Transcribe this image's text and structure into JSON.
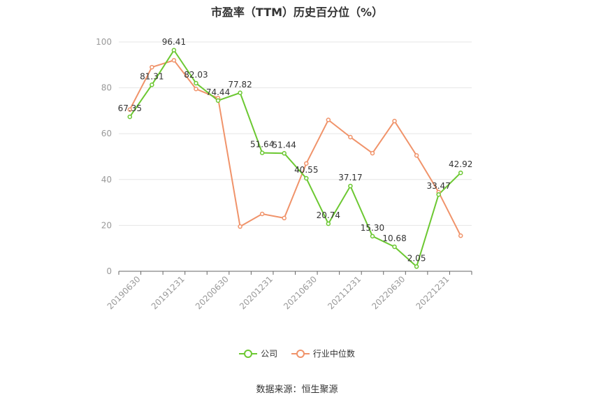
{
  "title": "市盈率（TTM）历史百分位（%）",
  "source": "数据来源：恒生聚源",
  "colors": {
    "company": "#6cc832",
    "industry": "#f0936a"
  },
  "chart_data": {
    "type": "line",
    "title": "市盈率（TTM）历史百分位（%）",
    "x_labels": [
      "20190630",
      "20191231",
      "20200630",
      "20201231",
      "20210630",
      "20211231",
      "20220630",
      "20221231"
    ],
    "ylim": [
      0,
      100
    ],
    "y_ticks": [
      0,
      20,
      40,
      60,
      80,
      100
    ],
    "grid": true,
    "legend_position": "bottom",
    "series": [
      {
        "name": "公司",
        "color": "#6cc832",
        "values": [
          67.35,
          81.31,
          96.41,
          82.03,
          74.44,
          77.82,
          51.64,
          51.44,
          40.55,
          20.74,
          37.17,
          15.3,
          10.68,
          2.05,
          33.47,
          42.92
        ],
        "labels": [
          "67.35",
          "81.31",
          "96.41",
          "82.03",
          "74.44",
          "77.82",
          "51.64",
          "51.44",
          "40.55",
          "20.74",
          "37.17",
          "15.30",
          "10.68",
          "2.05",
          "33.47",
          "42.92"
        ]
      },
      {
        "name": "行业中位数",
        "color": "#f0936a",
        "values": [
          70.5,
          89,
          92,
          79.5,
          75.5,
          19.5,
          25,
          23.2,
          47,
          66,
          58.5,
          51.5,
          65.5,
          50.5,
          34.5,
          15.5
        ]
      }
    ]
  }
}
